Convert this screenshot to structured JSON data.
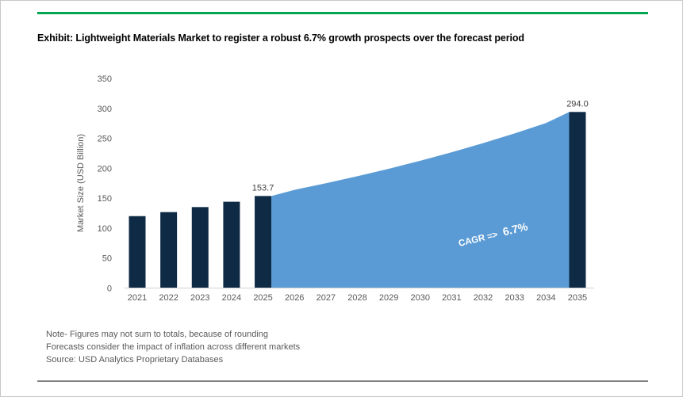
{
  "page": {
    "title": "Exhibit: Lightweight Materials Market to register a robust 6.7% growth prospects over the forecast period",
    "accent_rule_color": "#00A651",
    "footer_rule_color": "#808080",
    "notes": [
      "Note- Figures may not sum to totals, because of rounding",
      "Forecasts consider the impact of inflation across different markets",
      "Source: USD Analytics Proprietary Databases"
    ]
  },
  "chart_data": {
    "type": "bar",
    "title": "",
    "xlabel": "",
    "ylabel": "Market Size (USD Billion)",
    "ylim": [
      0,
      350
    ],
    "ytick_interval": 50,
    "grid": false,
    "legend": false,
    "axis_color": "#D9D9D9",
    "tick_label_color": "#595959",
    "data_label_color": "#404040",
    "categories": [
      "2021",
      "2022",
      "2023",
      "2024",
      "2025",
      "2026",
      "2027",
      "2028",
      "2029",
      "2030",
      "2031",
      "2032",
      "2033",
      "2034",
      "2035"
    ],
    "series": [
      {
        "name": "Market size (bars)",
        "type": "bar",
        "color": "#0E2A45",
        "values": [
          120.1,
          126.8,
          135.2,
          144.1,
          153.7,
          null,
          null,
          null,
          null,
          null,
          null,
          null,
          null,
          null,
          294.0
        ]
      },
      {
        "name": "Forecast growth (area)",
        "type": "area",
        "color": "#5B9BD5",
        "values": [
          null,
          null,
          null,
          null,
          153.7,
          164.0,
          175.0,
          186.7,
          199.2,
          212.6,
          226.8,
          242.0,
          258.2,
          275.5,
          294.0
        ]
      }
    ],
    "data_labels": [
      {
        "category": "2025",
        "text": "153.7"
      },
      {
        "category": "2035",
        "text": "294.0"
      }
    ],
    "cagr_annotation": {
      "text_prefix": "CAGR => ",
      "text_value": "6.7%",
      "color": "#FFFFFF"
    }
  }
}
